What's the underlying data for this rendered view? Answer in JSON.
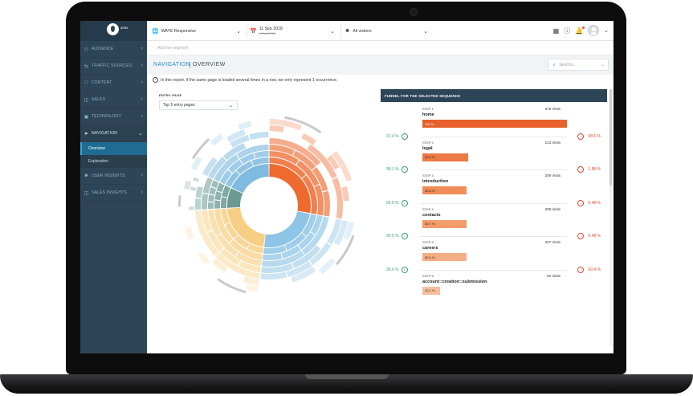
{
  "sidebar": {
    "brand": "ATIN",
    "items": [
      {
        "label": "AUDIENCE",
        "icon": "users-icon"
      },
      {
        "label": "TRAFFIC SOURCES",
        "icon": "shuffle-icon"
      },
      {
        "label": "CONTENT",
        "icon": "page-icon"
      },
      {
        "label": "SALES",
        "icon": "cart-icon"
      },
      {
        "label": "TECHNOLOGY",
        "icon": "monitor-icon"
      },
      {
        "label": "NAVIGATION",
        "icon": "send-icon",
        "open": true
      },
      {
        "label": "USER INSIGHTS",
        "icon": "user-icon"
      },
      {
        "label": "SALES INSIGHTS",
        "icon": "cart-icon"
      }
    ],
    "sub_items": [
      {
        "label": "Overview",
        "active": true
      },
      {
        "label": "Exploration",
        "active": false
      }
    ]
  },
  "topbar": {
    "site": "WAYE Responsive",
    "date_main": "11 Sep 2018",
    "date_compare": "4 Sep 2018",
    "visitors": "All visitors"
  },
  "segment_placeholder": "Add live segment",
  "title": {
    "section": "NAVIGATION",
    "page": "OVERVIEW"
  },
  "send_to": "Send to...",
  "info_text": "In this report, if the same page is loaded several times in a row, we only represent 1 occurrence.",
  "entry_page": {
    "label": "ENTRY PAGE",
    "value": "Top 5 entry pages"
  },
  "funnel": {
    "title": "FUNNEL FOR THE SELECTED SEQUENCE",
    "steps": [
      {
        "step": "STEP 1",
        "name": "home",
        "visits": "678 Visits",
        "pct": "100 %",
        "fill": 1.0,
        "color": "#e8612d"
      },
      {
        "step": "STEP 2",
        "name": "legal",
        "visits": "213 Visits",
        "pct": "31.4 %",
        "fill": 0.314,
        "color": "#ec7a45"
      },
      {
        "step": "STEP 3",
        "name": "introduction",
        "visits": "209 Visits",
        "pct": "30.8 %",
        "fill": 0.308,
        "color": "#ef8c58"
      },
      {
        "step": "STEP 4",
        "name": "contacts",
        "visits": "208 Visits",
        "pct": "30.7 %",
        "fill": 0.307,
        "color": "#f29d6c"
      },
      {
        "step": "STEP 5",
        "name": "careers",
        "visits": "207 Visits",
        "pct": "30.5 %",
        "fill": 0.305,
        "color": "#f4ae84"
      },
      {
        "step": "STEP 6",
        "name": "account::creation::submission",
        "visits": "82 Visits",
        "pct": "12.1 %",
        "fill": 0.121,
        "color": "#f6bf9c"
      }
    ],
    "conversions": [
      "31.4 %",
      "98.1 %",
      "99.5 %",
      "99.5 %",
      "39.6 %"
    ],
    "dropoffs": [
      "68.6 %",
      "1.88 %",
      "0.48 %",
      "0.48 %",
      "60.4 %"
    ]
  },
  "sunburst": {
    "segments": [
      {
        "name": "orange",
        "color": "#ee6a2f",
        "share": 0.28
      },
      {
        "name": "blue",
        "color": "#8ec4e6",
        "share": 0.24
      },
      {
        "name": "yellow",
        "color": "#f7cf84",
        "share": 0.22
      },
      {
        "name": "teal",
        "color": "#6a9a92",
        "share": 0.08
      },
      {
        "name": "light-blue",
        "color": "#7fbbe0",
        "share": 0.18
      }
    ]
  }
}
